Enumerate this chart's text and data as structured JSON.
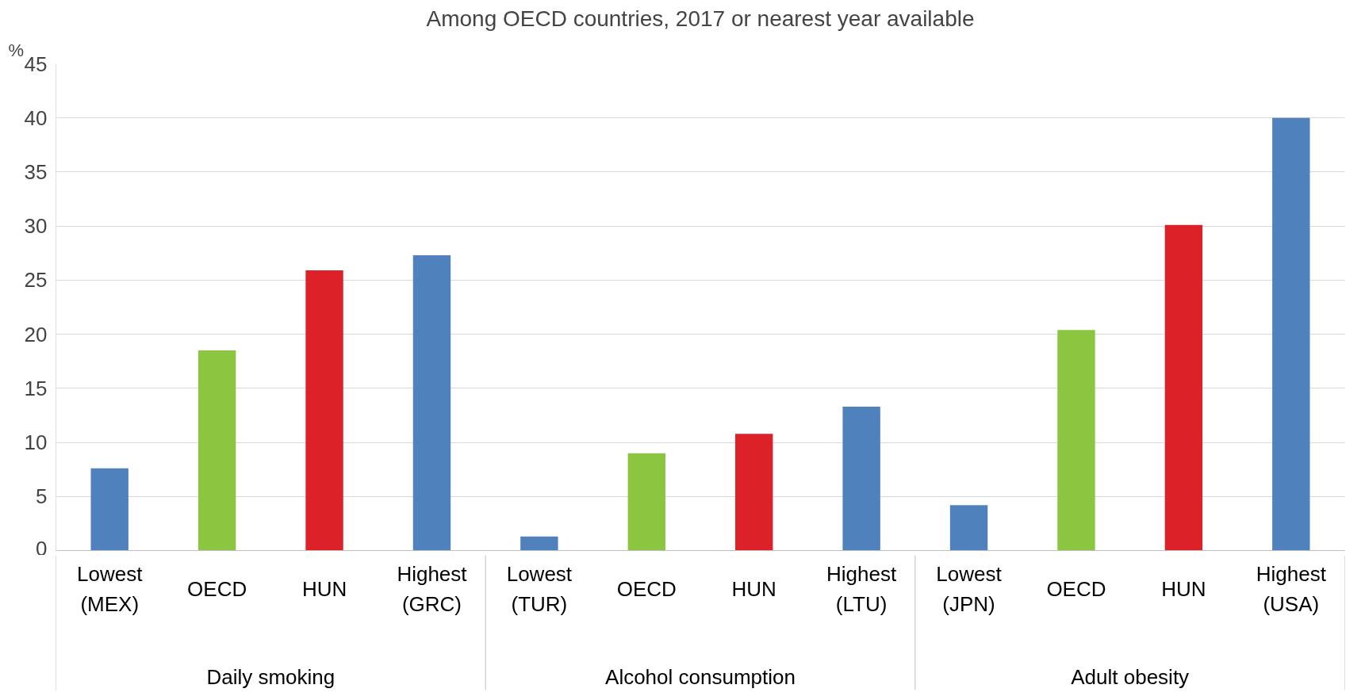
{
  "chart_data": {
    "type": "bar",
    "title": "Among OECD countries, 2017 or nearest year available",
    "ylabel": "%",
    "categories": [
      "Lowest\n(MEX)",
      "OECD",
      "HUN",
      "Highest\n(GRC)",
      "Lowest\n(TUR)",
      "OECD",
      "HUN",
      "Highest\n(LTU)",
      "Lowest\n(JPN)",
      "OECD",
      "HUN",
      "Highest\n(USA)"
    ],
    "values": [
      7.6,
      18.5,
      25.9,
      27.3,
      1.3,
      9.0,
      10.8,
      13.3,
      4.2,
      20.4,
      30.1,
      40.0
    ],
    "colors": [
      "#4f81bd",
      "#8cc641",
      "#dc2228",
      "#4f81bd",
      "#4f81bd",
      "#8cc641",
      "#dc2228",
      "#4f81bd",
      "#4f81bd",
      "#8cc641",
      "#dc2228",
      "#4f81bd"
    ],
    "annotations": [
      "Daily smoking",
      "Alcohol consumption",
      "Adult obesity"
    ],
    "ylim": [
      0,
      45
    ],
    "yticks": [
      0,
      5,
      10,
      15,
      20,
      25,
      30,
      35,
      40,
      45
    ],
    "grid": "y"
  }
}
